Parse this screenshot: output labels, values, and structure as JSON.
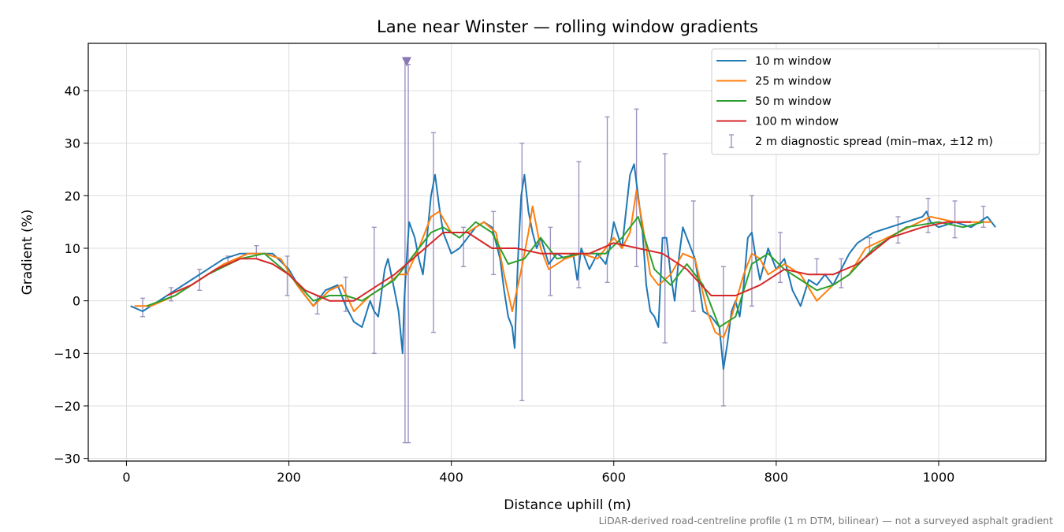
{
  "chart_data": {
    "type": "line",
    "title": "Lane near Winster — rolling window gradients",
    "xlabel": "Distance uphill (m)",
    "ylabel": "Gradient (%)",
    "footnote": "LiDAR-derived road-centreline profile (1 m DTM, bilinear) — not a surveyed asphalt gradient",
    "xlim": [
      -47,
      1132
    ],
    "ylim": [
      -30.5,
      49
    ],
    "xticks": [
      0,
      200,
      400,
      600,
      800,
      1000
    ],
    "yticks": [
      -30,
      -20,
      -10,
      0,
      10,
      20,
      30,
      40
    ],
    "grid": true,
    "legend_position": "top-right",
    "series": [
      {
        "name": "10 m window",
        "color": "#1f77b4",
        "x": [
          5,
          20,
          40,
          60,
          80,
          100,
          120,
          140,
          160,
          180,
          200,
          215,
          230,
          245,
          260,
          270,
          280,
          290,
          300,
          305,
          310,
          318,
          322,
          330,
          335,
          340,
          342,
          345,
          348,
          355,
          360,
          365,
          370,
          375,
          380,
          385,
          390,
          395,
          400,
          410,
          420,
          430,
          440,
          450,
          460,
          465,
          470,
          475,
          478,
          482,
          486,
          490,
          495,
          500,
          505,
          510,
          520,
          530,
          540,
          550,
          555,
          560,
          570,
          580,
          590,
          595,
          600,
          610,
          620,
          625,
          630,
          635,
          640,
          645,
          650,
          655,
          660,
          665,
          670,
          675,
          680,
          685,
          690,
          700,
          710,
          720,
          730,
          735,
          740,
          745,
          750,
          755,
          760,
          765,
          770,
          775,
          780,
          790,
          800,
          810,
          820,
          830,
          840,
          850,
          860,
          870,
          880,
          890,
          900,
          920,
          940,
          960,
          980,
          985,
          990,
          1000,
          1020,
          1040,
          1060,
          1070
        ],
        "y": [
          -1,
          -2,
          0,
          2,
          4,
          6,
          8,
          9,
          9,
          9,
          6,
          2,
          -1,
          2,
          3,
          -1,
          -4,
          -5,
          0,
          -2,
          -3,
          6,
          8,
          2,
          -2,
          -10,
          0,
          8,
          15,
          12,
          8,
          5,
          12,
          20,
          24,
          18,
          13,
          11,
          9,
          10,
          12,
          14,
          15,
          14,
          8,
          2,
          -3,
          -5,
          -9,
          8,
          20,
          24,
          17,
          13,
          10,
          12,
          7,
          9,
          8,
          9,
          4,
          10,
          6,
          9,
          7,
          10,
          15,
          10,
          24,
          26,
          20,
          14,
          3,
          -2,
          -3,
          -5,
          12,
          12,
          5,
          0,
          8,
          14,
          12,
          8,
          -2,
          -3,
          -5,
          -13,
          -8,
          -2,
          0,
          -3,
          3,
          12,
          13,
          8,
          4,
          10,
          6,
          8,
          2,
          -1,
          4,
          3,
          5,
          3,
          6,
          9,
          11,
          13,
          14,
          15,
          16,
          17,
          15,
          14,
          15,
          14,
          16,
          14
        ]
      },
      {
        "name": "25 m window",
        "color": "#ff7f0e",
        "x": [
          10,
          30,
          60,
          90,
          120,
          150,
          170,
          190,
          210,
          230,
          250,
          265,
          280,
          300,
          320,
          335,
          345,
          360,
          375,
          385,
          400,
          420,
          440,
          455,
          465,
          475,
          485,
          495,
          500,
          510,
          520,
          540,
          560,
          580,
          600,
          610,
          620,
          628,
          635,
          645,
          655,
          670,
          685,
          700,
          715,
          725,
          735,
          745,
          760,
          770,
          780,
          790,
          810,
          830,
          850,
          870,
          890,
          910,
          950,
          990,
          1020,
          1050,
          1065
        ],
        "y": [
          -1,
          -1,
          1,
          4,
          7,
          9,
          9,
          8,
          3,
          -1,
          2,
          3,
          -2,
          1,
          3,
          5,
          5,
          10,
          16,
          17,
          13,
          13,
          15,
          13,
          5,
          -2,
          5,
          13,
          18,
          10,
          6,
          8,
          9,
          8,
          12,
          10,
          13,
          21,
          15,
          5,
          3,
          5,
          9,
          8,
          -2,
          -6,
          -7,
          -3,
          5,
          9,
          8,
          5,
          7,
          5,
          0,
          3,
          5,
          10,
          13,
          16,
          15,
          15,
          15
        ]
      },
      {
        "name": "50 m window",
        "color": "#2ca02c",
        "x": [
          25,
          60,
          100,
          140,
          170,
          200,
          230,
          250,
          270,
          290,
          310,
          330,
          345,
          360,
          375,
          390,
          410,
          430,
          450,
          470,
          490,
          510,
          530,
          560,
          590,
          610,
          630,
          650,
          670,
          690,
          710,
          730,
          750,
          770,
          790,
          810,
          830,
          850,
          870,
          890,
          920,
          960,
          1000,
          1030,
          1055
        ],
        "y": [
          -1,
          1,
          5,
          8,
          9,
          5,
          0,
          1,
          1,
          0,
          2,
          4,
          7,
          10,
          13,
          14,
          12,
          15,
          13,
          7,
          8,
          12,
          8,
          9,
          9,
          12,
          16,
          6,
          3,
          7,
          3,
          -5,
          -3,
          7,
          9,
          6,
          4,
          2,
          3,
          5,
          10,
          14,
          15,
          14,
          15
        ]
      },
      {
        "name": "100 m window",
        "color": "#d62728",
        "x": [
          50,
          80,
          110,
          140,
          160,
          180,
          200,
          220,
          250,
          280,
          300,
          330,
          360,
          390,
          420,
          450,
          480,
          510,
          540,
          570,
          600,
          630,
          660,
          690,
          720,
          750,
          780,
          810,
          840,
          870,
          900,
          940,
          980,
          1010,
          1040
        ],
        "y": [
          1,
          3,
          6,
          8,
          8,
          7,
          5,
          2,
          0,
          0,
          2,
          5,
          9,
          13,
          13,
          10,
          10,
          9,
          9,
          9,
          11,
          10,
          9,
          6,
          1,
          1,
          3,
          6,
          5,
          5,
          7,
          12,
          14,
          15,
          15
        ]
      }
    ],
    "diagnostic": {
      "name": "2 m diagnostic spread (min–max, ±12 m)",
      "color": "#9f93bf",
      "bars": [
        {
          "x": 20,
          "min": -3,
          "max": 0.5
        },
        {
          "x": 55,
          "min": 0,
          "max": 2.5
        },
        {
          "x": 90,
          "min": 2,
          "max": 6
        },
        {
          "x": 125,
          "min": 7,
          "max": 8.5
        },
        {
          "x": 160,
          "min": 8,
          "max": 10.5
        },
        {
          "x": 198,
          "min": 1,
          "max": 8.5
        },
        {
          "x": 235,
          "min": -2.5,
          "max": 1
        },
        {
          "x": 270,
          "min": -2,
          "max": 4.5
        },
        {
          "x": 305,
          "min": -10,
          "max": 14
        },
        {
          "x": 343,
          "min": -27,
          "max": 46
        },
        {
          "x": 347,
          "min": -27,
          "max": 45
        },
        {
          "x": 378,
          "min": -6,
          "max": 32
        },
        {
          "x": 415,
          "min": 6.5,
          "max": 14
        },
        {
          "x": 452,
          "min": 5,
          "max": 17
        },
        {
          "x": 487,
          "min": -19,
          "max": 30
        },
        {
          "x": 522,
          "min": 1,
          "max": 14
        },
        {
          "x": 557,
          "min": 2.5,
          "max": 26.5
        },
        {
          "x": 592,
          "min": 3.5,
          "max": 35
        },
        {
          "x": 628,
          "min": 6.5,
          "max": 36.5
        },
        {
          "x": 663,
          "min": -8,
          "max": 28
        },
        {
          "x": 698,
          "min": -2,
          "max": 19
        },
        {
          "x": 735,
          "min": -20,
          "max": 6.5
        },
        {
          "x": 770,
          "min": -1,
          "max": 20
        },
        {
          "x": 805,
          "min": 3.5,
          "max": 13
        },
        {
          "x": 850,
          "min": 5,
          "max": 8
        },
        {
          "x": 880,
          "min": 2.5,
          "max": 8
        },
        {
          "x": 915,
          "min": 9,
          "max": 12
        },
        {
          "x": 950,
          "min": 11,
          "max": 16
        },
        {
          "x": 987,
          "min": 13,
          "max": 19.5
        },
        {
          "x": 1020,
          "min": 12,
          "max": 19
        },
        {
          "x": 1055,
          "min": 14,
          "max": 18
        }
      ],
      "marker": {
        "x": 345,
        "y": 45.5
      }
    }
  }
}
